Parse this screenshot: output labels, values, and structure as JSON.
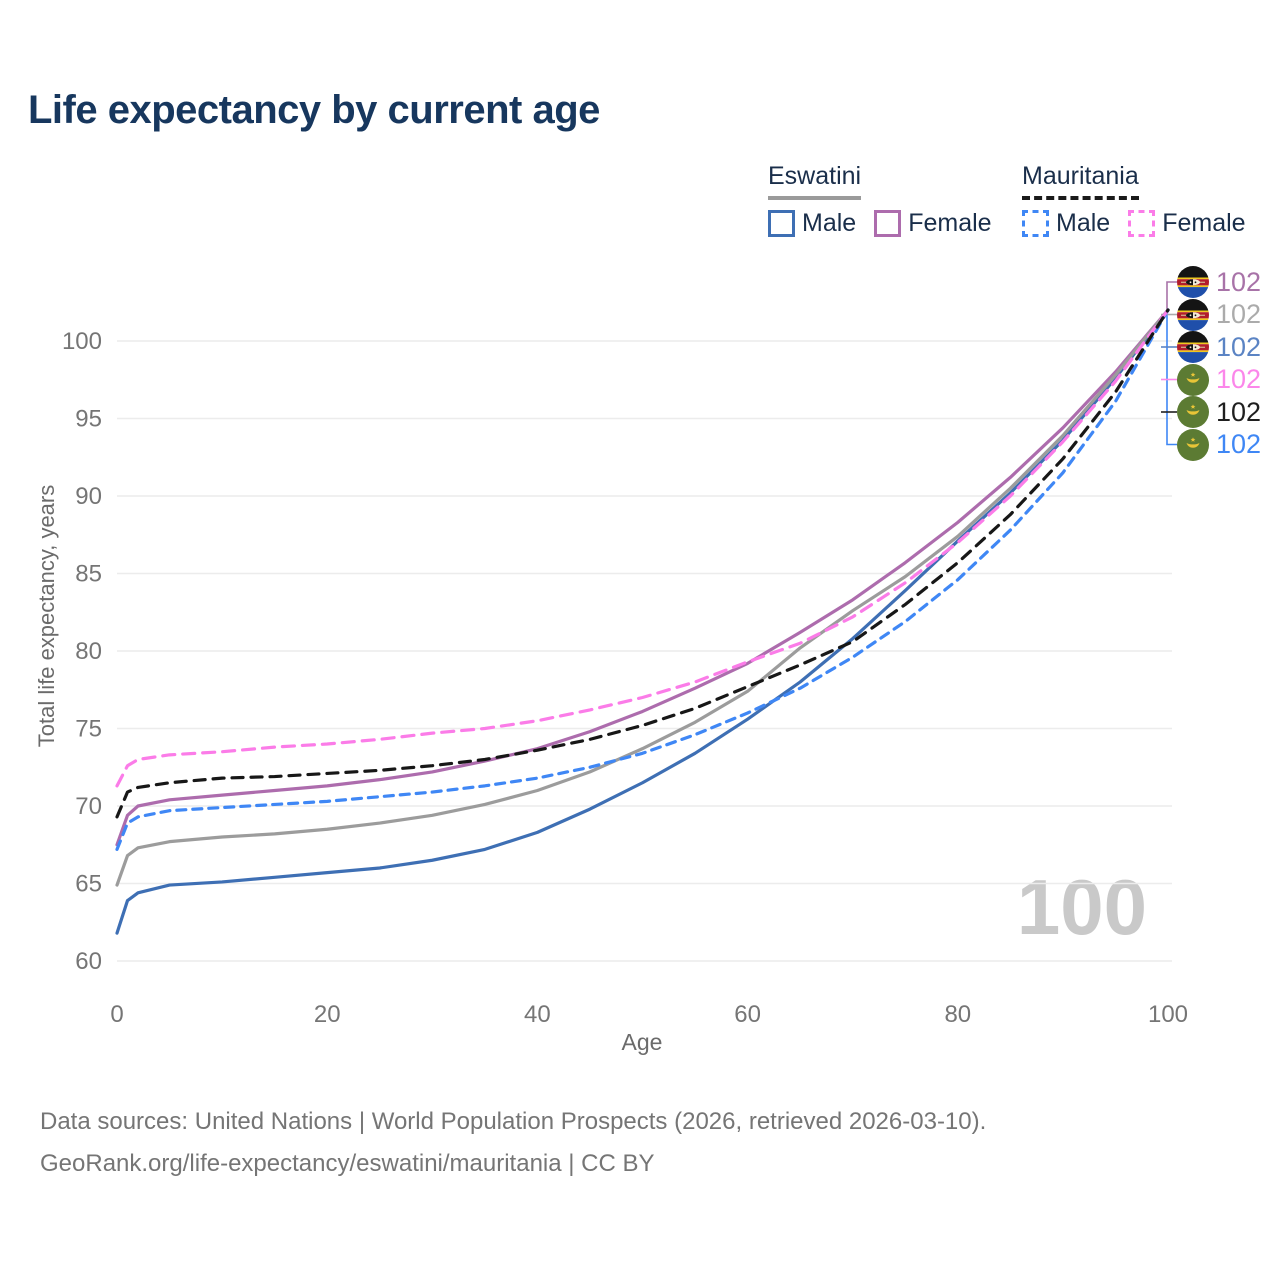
{
  "title": "Life expectancy by current age",
  "colors": {
    "title_text": "#17375e",
    "legend_text": "#1a2e4a",
    "eswatini_male": "#3e6fb4",
    "eswatini_female": "#ad6cad",
    "eswatini_both": "#9c9c9c",
    "mauritania_male": "#3f87f5",
    "mauritania_female": "#fb7ce8",
    "mauritania_both": "#171717",
    "eswatini_underline": "#9a9a9a",
    "mauritania_underline": "#1a1a1a",
    "gridline": "#ececec",
    "tick_text": "#757575",
    "watermark_text": "#c9c9c9"
  },
  "legend": {
    "groups": [
      {
        "name": "Eswatini",
        "line_style": "solid",
        "items": [
          {
            "label": "Male",
            "color": "#3e6fb4",
            "dashed": false
          },
          {
            "label": "Female",
            "color": "#ad6cad",
            "dashed": false
          }
        ]
      },
      {
        "name": "Mauritania",
        "line_style": "dashed",
        "items": [
          {
            "label": "Male",
            "color": "#3f87f5",
            "dashed": true
          },
          {
            "label": "Female",
            "color": "#fb7ce8",
            "dashed": true
          }
        ]
      }
    ]
  },
  "chart_data": {
    "type": "line",
    "title": "Life expectancy by current age",
    "xlabel": "Age",
    "ylabel": "Total life expectancy, years",
    "xticks": [
      0,
      20,
      40,
      60,
      80,
      100
    ],
    "yticks": [
      60,
      65,
      70,
      75,
      80,
      85,
      90,
      95,
      100
    ],
    "xlim": [
      0,
      100
    ],
    "ylim": [
      60,
      102
    ],
    "grid": "horizontal",
    "legend_position": "top-right",
    "watermark": "100",
    "x": [
      0,
      1,
      2,
      5,
      10,
      15,
      20,
      25,
      30,
      35,
      40,
      45,
      50,
      55,
      60,
      65,
      70,
      75,
      80,
      85,
      90,
      95,
      100
    ],
    "series": [
      {
        "name": "Eswatini Male",
        "country": "Eswatini",
        "sex": "Male",
        "color": "#3e6fb4",
        "dash": null,
        "values": [
          61.8,
          63.9,
          64.4,
          64.9,
          65.1,
          65.4,
          65.7,
          66.0,
          66.5,
          67.2,
          68.3,
          69.8,
          71.5,
          73.4,
          75.6,
          78.0,
          80.8,
          83.9,
          87.1,
          90.2,
          93.6,
          97.6,
          102
        ]
      },
      {
        "name": "Eswatini Female",
        "country": "Eswatini",
        "sex": "Female",
        "color": "#ad6cad",
        "dash": null,
        "values": [
          67.5,
          69.4,
          70.0,
          70.4,
          70.7,
          71.0,
          71.3,
          71.7,
          72.2,
          72.9,
          73.7,
          74.8,
          76.1,
          77.6,
          79.2,
          81.2,
          83.3,
          85.7,
          88.3,
          91.2,
          94.4,
          98.0,
          102
        ]
      },
      {
        "name": "Eswatini Both sexes",
        "country": "Eswatini",
        "sex": "Both",
        "color": "#9c9c9c",
        "dash": null,
        "values": [
          64.9,
          66.8,
          67.3,
          67.7,
          68.0,
          68.2,
          68.5,
          68.9,
          69.4,
          70.1,
          71.0,
          72.2,
          73.7,
          75.4,
          77.4,
          80.2,
          82.6,
          84.8,
          87.4,
          90.5,
          93.9,
          97.8,
          102
        ]
      },
      {
        "name": "Mauritania Male",
        "country": "Mauritania",
        "sex": "Male",
        "color": "#3f87f5",
        "dash": "9 7",
        "values": [
          67.2,
          68.9,
          69.3,
          69.7,
          69.9,
          70.1,
          70.3,
          70.6,
          70.9,
          71.3,
          71.8,
          72.5,
          73.4,
          74.6,
          76.0,
          77.6,
          79.6,
          81.9,
          84.6,
          87.8,
          91.5,
          96.1,
          102
        ]
      },
      {
        "name": "Mauritania Female",
        "country": "Mauritania",
        "sex": "Female",
        "color": "#fb7ce8",
        "dash": "12 8",
        "values": [
          71.3,
          72.6,
          73.0,
          73.3,
          73.5,
          73.8,
          74.0,
          74.3,
          74.7,
          75.0,
          75.5,
          76.2,
          77.0,
          78.0,
          79.3,
          80.5,
          82.2,
          84.4,
          87.0,
          90.0,
          93.5,
          97.4,
          102
        ]
      },
      {
        "name": "Mauritania Both sexes",
        "country": "Mauritania",
        "sex": "Both",
        "color": "#171717",
        "dash": "11 8",
        "values": [
          69.3,
          70.9,
          71.2,
          71.5,
          71.8,
          71.9,
          72.1,
          72.3,
          72.6,
          73.0,
          73.6,
          74.3,
          75.2,
          76.3,
          77.7,
          79.1,
          80.6,
          83.0,
          85.7,
          88.8,
          92.4,
          96.7,
          102
        ]
      }
    ],
    "end_labels": [
      {
        "value": "102",
        "color": "#a873a8",
        "flag": "eswatini",
        "series": "Eswatini Female"
      },
      {
        "value": "102",
        "color": "#ababab",
        "flag": "eswatini",
        "series": "Eswatini Both sexes"
      },
      {
        "value": "102",
        "color": "#5b84c4",
        "flag": "eswatini",
        "series": "Eswatini Male"
      },
      {
        "value": "102",
        "color": "#fb87ea",
        "flag": "mauritania",
        "series": "Mauritania Female"
      },
      {
        "value": "102",
        "color": "#1f1f1f",
        "flag": "mauritania",
        "series": "Mauritania Both sexes"
      },
      {
        "value": "102",
        "color": "#3f87f5",
        "flag": "mauritania",
        "series": "Mauritania Male"
      }
    ]
  },
  "footer": {
    "line1": "Data sources: United Nations | World Population Prospects (2026, retrieved 2026-03-10).",
    "line2": "GeoRank.org/life-expectancy/eswatini/mauritania | CC BY"
  }
}
